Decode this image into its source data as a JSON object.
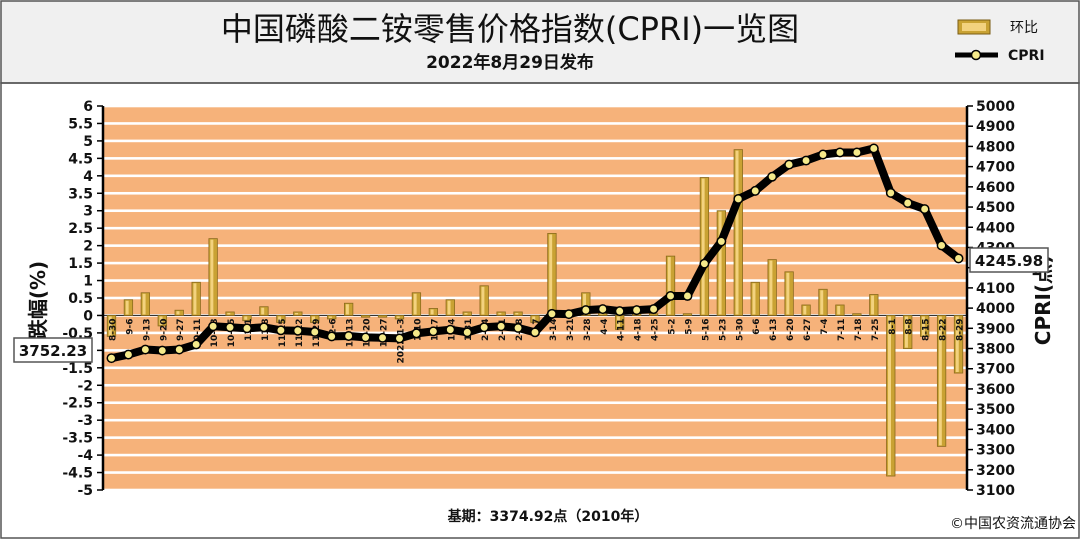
{
  "header": {
    "title": "中国磷酸二铵零售价格指数(CPRI)一览图",
    "subtitle": "2022年8月29日发布"
  },
  "legend": {
    "bar_label": "环比",
    "line_label": "CPRI"
  },
  "footer": {
    "base": "基期：3374.92点（2010年）",
    "copyright": "©中国农资流通协会"
  },
  "callouts": {
    "first_value": "3752.23",
    "last_value": "4245.98"
  },
  "colors": {
    "band": "#f6b27a",
    "bar": "#c9a233",
    "line": "#000000",
    "marker": "#f5e98a",
    "header_bg": "#f0f0f0"
  },
  "chart_data": {
    "type": "bar",
    "categories": [
      "8-30",
      "9-6",
      "9-13",
      "9-20",
      "9-27",
      "10-11",
      "10-18",
      "10-25",
      "11-1",
      "11-8",
      "11-15",
      "11-22",
      "11-29",
      "12-6",
      "12-13",
      "12-20",
      "12-27",
      "2022-1-3",
      "1-10",
      "1-17",
      "1-24",
      "1-31",
      "2-14",
      "2-21",
      "2-28",
      "3-7",
      "3-14",
      "3-21",
      "3-28",
      "4-4",
      "4-11",
      "4-18",
      "4-25",
      "5-2",
      "5-9",
      "5-16",
      "5-23",
      "5-30",
      "6-6",
      "6-13",
      "6-20",
      "6-27",
      "7-4",
      "7-11",
      "7-18",
      "7-25",
      "8-1",
      "8-8",
      "8-15",
      "8-22",
      "8-29"
    ],
    "ylabel": "跌幅(%)",
    "y2label": "CPRI(点)",
    "ylim": [
      -5,
      6
    ],
    "y2lim": [
      3100,
      5000
    ],
    "grid": true,
    "series": [
      {
        "name": "环比",
        "type": "bar",
        "axis": "left",
        "values": [
          -0.6,
          0.45,
          0.65,
          -0.3,
          0.15,
          0.95,
          2.2,
          0.1,
          -0.15,
          0.25,
          -0.2,
          0.1,
          -0.2,
          -0.1,
          0.35,
          -0.05,
          -0.05,
          -0.1,
          0.65,
          0.2,
          0.45,
          0.1,
          0.85,
          0.1,
          0.1,
          -0.2,
          2.35,
          -0.05,
          0.65,
          0.1,
          -0.4,
          0.05,
          0.05,
          1.7,
          0.05,
          3.95,
          3.0,
          4.75,
          0.95,
          1.6,
          1.25,
          0.3,
          0.75,
          0.3,
          0.05,
          0.6,
          -4.6,
          -0.95,
          -0.6,
          -3.75,
          -1.65
        ]
      },
      {
        "name": "CPRI",
        "type": "line",
        "axis": "right",
        "values": [
          3752.23,
          3770,
          3795,
          3790,
          3795,
          3820,
          3910,
          3905,
          3900,
          3905,
          3890,
          3888,
          3882,
          3860,
          3862,
          3855,
          3853,
          3850,
          3875,
          3885,
          3893,
          3880,
          3905,
          3910,
          3902,
          3880,
          3972,
          3970,
          3990,
          3995,
          3985,
          3990,
          3995,
          4060,
          4060,
          4220,
          4330,
          4540,
          4580,
          4650,
          4710,
          4730,
          4760,
          4770,
          4770,
          4790,
          4570,
          4520,
          4490,
          4310,
          4245.98
        ]
      }
    ]
  }
}
